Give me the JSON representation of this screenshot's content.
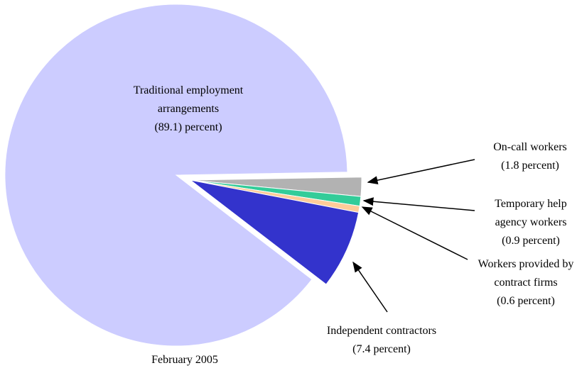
{
  "chart_data": {
    "type": "pie",
    "title": "February 2005",
    "categories": [
      "Traditional employment arrangements",
      "On-call workers",
      "Temporary help agency workers",
      "Workers provided by contract firms",
      "Independent contractors"
    ],
    "values": [
      89.1,
      1.8,
      0.9,
      0.6,
      7.4
    ],
    "value_labels": [
      "(89.1)  percent)",
      "(1.8 percent)",
      "(0.9 percent)",
      "(0.6 percent)",
      "(7.4 percent)"
    ],
    "colors": [
      "#ccccff",
      "#b2b2b2",
      "#33cc99",
      "#ffcc99",
      "#3333cc"
    ]
  }
}
